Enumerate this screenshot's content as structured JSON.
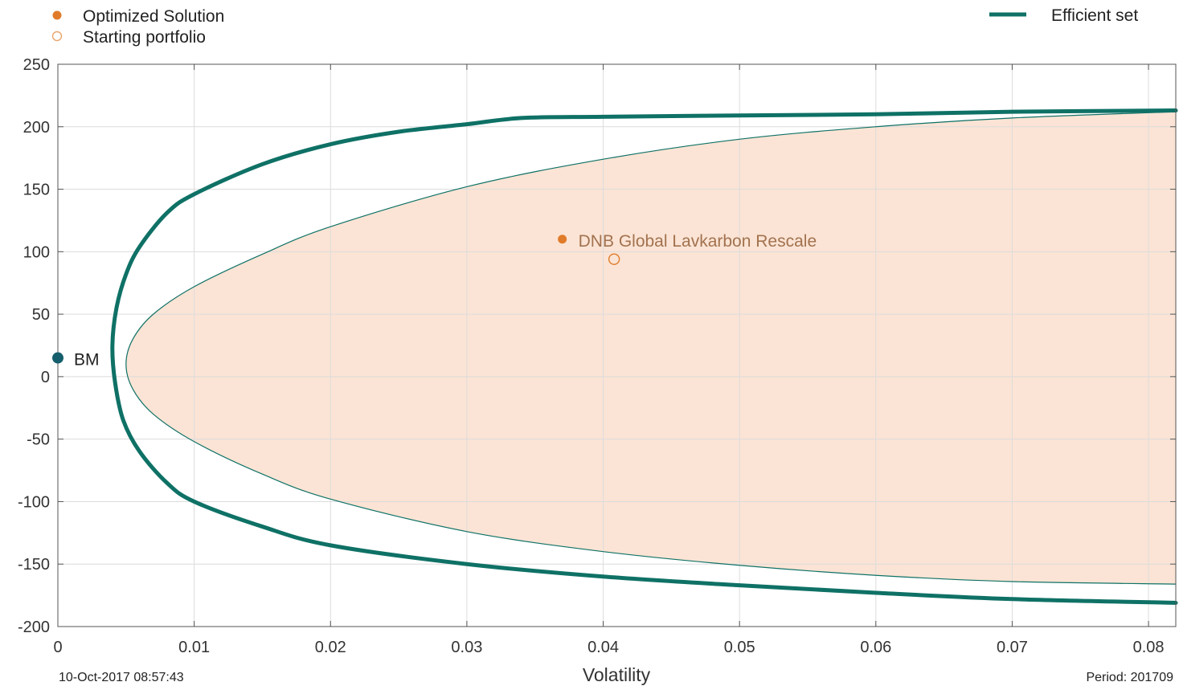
{
  "chart_data": {
    "type": "line",
    "xlabel": "Volatility",
    "ylabel": "",
    "xlim": [
      0,
      0.082
    ],
    "ylim": [
      -200,
      250
    ],
    "x_ticks": [
      0,
      0.01,
      0.02,
      0.03,
      0.04,
      0.05,
      0.06,
      0.07,
      0.08
    ],
    "x_tick_labels": [
      "0",
      "0.01",
      "0.02",
      "0.03",
      "0.04",
      "0.05",
      "0.06",
      "0.07",
      "0.08"
    ],
    "y_ticks": [
      250,
      200,
      150,
      100,
      50,
      0,
      -50,
      -100,
      -150,
      -200
    ],
    "y_tick_labels": [
      "250",
      "200",
      "150",
      "100",
      "50",
      "0",
      "-50",
      "-100",
      "-150",
      "-200"
    ],
    "grid": true,
    "legend": [
      {
        "label": "Optimized Solution",
        "marker": "filled-circle",
        "color": "#e07b2a",
        "position": "top-left"
      },
      {
        "label": "Starting portfolio",
        "marker": "open-circle",
        "color": "#e07b2a",
        "position": "top-left"
      },
      {
        "label": "Efficient set",
        "marker": "line",
        "color": "#0f7166",
        "position": "top-right"
      }
    ],
    "series": [
      {
        "name": "Efficient set",
        "color": "#0f7166",
        "points": [
          [
            0.082,
            213
          ],
          [
            0.07,
            212
          ],
          [
            0.06,
            210
          ],
          [
            0.05,
            209
          ],
          [
            0.04,
            208
          ],
          [
            0.034,
            207
          ],
          [
            0.03,
            202
          ],
          [
            0.025,
            196
          ],
          [
            0.02,
            186
          ],
          [
            0.015,
            170
          ],
          [
            0.01,
            146
          ],
          [
            0.008,
            131
          ],
          [
            0.006,
            104
          ],
          [
            0.005,
            82
          ],
          [
            0.0043,
            55
          ],
          [
            0.004,
            25
          ],
          [
            0.0042,
            -5
          ],
          [
            0.0048,
            -35
          ],
          [
            0.006,
            -60
          ],
          [
            0.008,
            -85
          ],
          [
            0.01,
            -100
          ],
          [
            0.015,
            -120
          ],
          [
            0.02,
            -135
          ],
          [
            0.03,
            -150
          ],
          [
            0.04,
            -160
          ],
          [
            0.05,
            -167
          ],
          [
            0.06,
            -173
          ],
          [
            0.07,
            -178
          ],
          [
            0.082,
            -181
          ]
        ]
      },
      {
        "name": "",
        "color": "#0f7166",
        "fill": "#fbe4d5",
        "points": [
          [
            0.082,
            212
          ],
          [
            0.07,
            207
          ],
          [
            0.06,
            200
          ],
          [
            0.05,
            190
          ],
          [
            0.04,
            174
          ],
          [
            0.03,
            152
          ],
          [
            0.02,
            120
          ],
          [
            0.015,
            98
          ],
          [
            0.01,
            72
          ],
          [
            0.007,
            50
          ],
          [
            0.0055,
            30
          ],
          [
            0.005,
            10
          ],
          [
            0.0055,
            -10
          ],
          [
            0.007,
            -30
          ],
          [
            0.01,
            -52
          ],
          [
            0.015,
            -78
          ],
          [
            0.02,
            -98
          ],
          [
            0.03,
            -124
          ],
          [
            0.04,
            -140
          ],
          [
            0.05,
            -151
          ],
          [
            0.06,
            -159
          ],
          [
            0.07,
            -164
          ],
          [
            0.082,
            -166
          ]
        ]
      }
    ],
    "points": [
      {
        "label": "DNB Global Lavkarbon Rescale",
        "x": 0.037,
        "y": 110,
        "marker": "filled-circle",
        "color": "#e07b2a"
      },
      {
        "label": "",
        "x": 0.0408,
        "y": 94,
        "marker": "open-circle",
        "color": "#e07b2a"
      },
      {
        "label": "BM",
        "x": 0.0,
        "y": 15,
        "marker": "filled-circle",
        "color": "#155e6c"
      }
    ]
  },
  "footer": {
    "timestamp": "10-Oct-2017 08:57:43",
    "period": "Period: 201709"
  }
}
